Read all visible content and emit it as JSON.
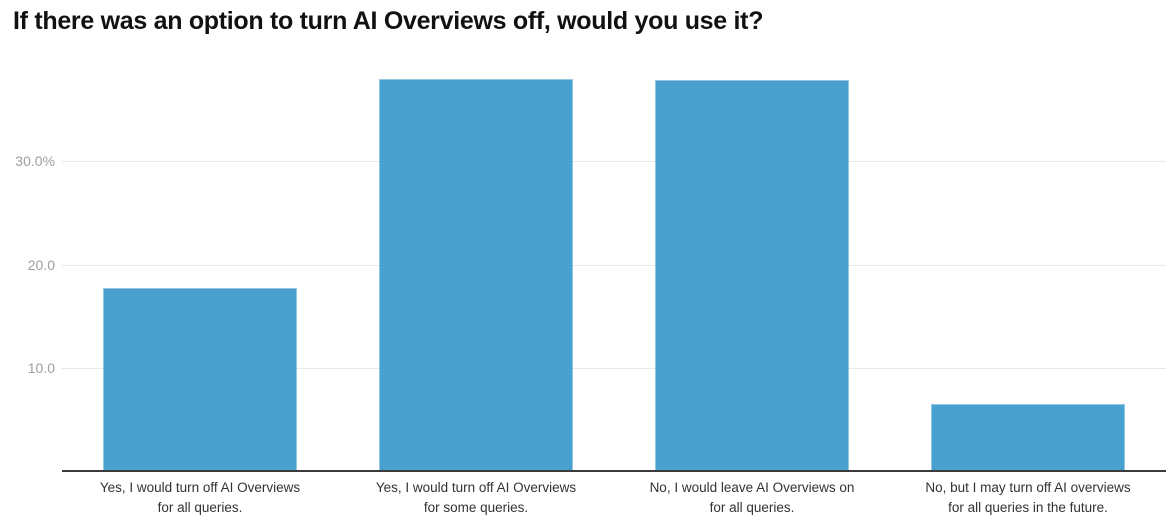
{
  "chart_data": {
    "type": "bar",
    "title": "If there was an option to turn AI Overviews off, would you use it?",
    "categories": [
      "Yes, I would turn off AI Overviews\nfor all queries.",
      "Yes, I would turn off AI Overviews\nfor some queries.",
      "No, I would leave AI Overviews on\nfor all queries.",
      "No, but I may turn off AI overviews\nfor all queries in the future."
    ],
    "values": [
      17.7,
      38.0,
      37.9,
      6.5
    ],
    "value_unit": "%",
    "xlabel": "",
    "ylabel": "",
    "ylim": [
      0,
      40
    ],
    "yticks": [
      {
        "value": 10,
        "label": "10.0"
      },
      {
        "value": 20,
        "label": "20.0"
      },
      {
        "value": 30,
        "label": "30.0%"
      }
    ],
    "grid": true,
    "legend": "none",
    "bar_color": "#4aa0ce"
  },
  "colors": {
    "bar": "#4aa0ce",
    "grid": "#e8e8e8",
    "axis": "#3b3b3b",
    "y_tick_label": "#9e9e9e",
    "category_label": "#333333",
    "title": "#111111",
    "background": "#ffffff"
  }
}
